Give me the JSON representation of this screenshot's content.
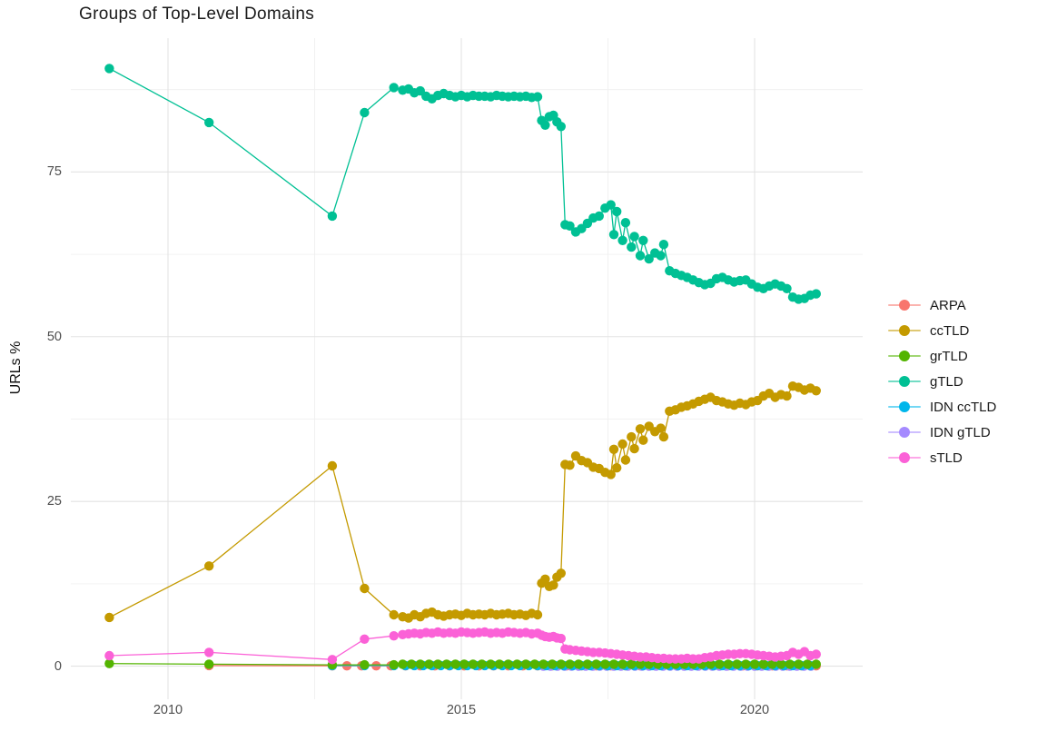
{
  "title": "Groups of Top-Level Domains",
  "chart_data": {
    "type": "line",
    "title": "Groups of Top-Level Domains",
    "xlabel": "",
    "ylabel": "URLs %",
    "x_ticks": [
      2010,
      2015,
      2020
    ],
    "x_tick_labels": [
      "2010",
      "2015",
      "2020"
    ],
    "y_ticks": [
      0,
      25,
      50,
      75
    ],
    "y_tick_labels": [
      "0",
      "25",
      "50",
      "75"
    ],
    "x_minor_ticks": [
      2012.5,
      2017.5
    ],
    "y_minor_ticks": [
      12.5,
      37.5,
      62.5,
      87.5
    ],
    "xlim": [
      2008.4,
      2021.8
    ],
    "ylim": [
      -4.6,
      95.3
    ],
    "grid": true,
    "legend_position": "right",
    "marker": "point-with-line",
    "draw_order": [
      "ARPA",
      "IDN gTLD",
      "IDN ccTLD",
      "ccTLD",
      "grTLD",
      "gTLD",
      "sTLD"
    ],
    "series": [
      {
        "name": "ARPA",
        "color": "#F8766D",
        "points": [
          [
            2010.7,
            0.1
          ]
        ],
        "dense": {
          "from": 2012.8,
          "to": 2021.05,
          "step": 0.25,
          "value": 0.05
        }
      },
      {
        "name": "ccTLD",
        "color": "#C49A00",
        "points": [
          [
            2009,
            7.4
          ],
          [
            2010.7,
            15.2
          ],
          [
            2012.8,
            30.4
          ],
          [
            2013.35,
            11.8
          ],
          [
            2013.85,
            7.8
          ],
          [
            2014,
            7.5
          ],
          [
            2014.1,
            7.3
          ],
          [
            2014.2,
            7.8
          ],
          [
            2014.3,
            7.5
          ],
          [
            2014.4,
            8
          ],
          [
            2014.5,
            8.2
          ],
          [
            2014.6,
            7.8
          ],
          [
            2014.7,
            7.6
          ],
          [
            2014.8,
            7.8
          ],
          [
            2014.9,
            7.9
          ],
          [
            2015,
            7.7
          ],
          [
            2015.1,
            8
          ],
          [
            2015.2,
            7.8
          ],
          [
            2015.3,
            7.9
          ],
          [
            2015.4,
            7.8
          ],
          [
            2015.5,
            8
          ],
          [
            2015.6,
            7.8
          ],
          [
            2015.7,
            7.9
          ],
          [
            2015.8,
            8
          ],
          [
            2015.9,
            7.8
          ],
          [
            2016,
            7.9
          ],
          [
            2016.1,
            7.7
          ],
          [
            2016.2,
            8
          ],
          [
            2016.3,
            7.8
          ],
          [
            2016.37,
            12.6
          ],
          [
            2016.43,
            13.2
          ],
          [
            2016.5,
            12.1
          ],
          [
            2016.57,
            12.3
          ],
          [
            2016.63,
            13.5
          ],
          [
            2016.7,
            14.1
          ],
          [
            2016.77,
            30.6
          ],
          [
            2016.85,
            30.5
          ],
          [
            2016.95,
            31.9
          ],
          [
            2017.05,
            31.2
          ],
          [
            2017.15,
            30.9
          ],
          [
            2017.25,
            30.2
          ],
          [
            2017.35,
            30
          ],
          [
            2017.45,
            29.4
          ],
          [
            2017.55,
            29.1
          ],
          [
            2017.6,
            32.9
          ],
          [
            2017.65,
            30.1
          ],
          [
            2017.75,
            33.7
          ],
          [
            2017.8,
            31.3
          ],
          [
            2017.9,
            34.8
          ],
          [
            2017.95,
            33
          ],
          [
            2018.05,
            36
          ],
          [
            2018.1,
            34.3
          ],
          [
            2018.2,
            36.4
          ],
          [
            2018.3,
            35.6
          ],
          [
            2018.4,
            36.1
          ],
          [
            2018.45,
            34.8
          ],
          [
            2018.55,
            38.7
          ],
          [
            2018.65,
            38.9
          ],
          [
            2018.75,
            39.3
          ],
          [
            2018.85,
            39.5
          ],
          [
            2018.95,
            39.8
          ],
          [
            2019.05,
            40.2
          ],
          [
            2019.15,
            40.5
          ],
          [
            2019.25,
            40.8
          ],
          [
            2019.35,
            40.3
          ],
          [
            2019.45,
            40.1
          ],
          [
            2019.55,
            39.8
          ],
          [
            2019.65,
            39.6
          ],
          [
            2019.75,
            39.9
          ],
          [
            2019.85,
            39.7
          ],
          [
            2019.95,
            40.1
          ],
          [
            2020.05,
            40.3
          ],
          [
            2020.15,
            41
          ],
          [
            2020.25,
            41.4
          ],
          [
            2020.35,
            40.8
          ],
          [
            2020.45,
            41.2
          ],
          [
            2020.55,
            41
          ],
          [
            2020.65,
            42.5
          ],
          [
            2020.75,
            42.3
          ],
          [
            2020.85,
            41.9
          ],
          [
            2020.95,
            42.2
          ],
          [
            2021.05,
            41.8
          ]
        ]
      },
      {
        "name": "grTLD",
        "color": "#53B400",
        "points": [
          [
            2009,
            0.4
          ],
          [
            2010.7,
            0.3
          ],
          [
            2012.8,
            0.2
          ],
          [
            2013.35,
            0.2
          ],
          [
            2013.85,
            0.2
          ]
        ],
        "dense": {
          "from": 2014,
          "to": 2021.05,
          "step": 0.15,
          "value": 0.3
        }
      },
      {
        "name": "gTLD",
        "color": "#00C094",
        "points": [
          [
            2009,
            90.7
          ],
          [
            2010.7,
            82.5
          ],
          [
            2012.8,
            68.3
          ],
          [
            2013.35,
            84
          ],
          [
            2013.85,
            87.8
          ],
          [
            2014,
            87.4
          ],
          [
            2014.1,
            87.6
          ],
          [
            2014.2,
            87
          ],
          [
            2014.3,
            87.3
          ],
          [
            2014.4,
            86.5
          ],
          [
            2014.5,
            86.1
          ],
          [
            2014.6,
            86.6
          ],
          [
            2014.7,
            86.9
          ],
          [
            2014.8,
            86.6
          ],
          [
            2014.9,
            86.4
          ],
          [
            2015,
            86.6
          ],
          [
            2015.1,
            86.4
          ],
          [
            2015.2,
            86.6
          ],
          [
            2015.3,
            86.5
          ],
          [
            2015.4,
            86.5
          ],
          [
            2015.5,
            86.4
          ],
          [
            2015.6,
            86.6
          ],
          [
            2015.7,
            86.5
          ],
          [
            2015.8,
            86.4
          ],
          [
            2015.9,
            86.5
          ],
          [
            2016,
            86.4
          ],
          [
            2016.1,
            86.5
          ],
          [
            2016.2,
            86.3
          ],
          [
            2016.3,
            86.4
          ],
          [
            2016.37,
            82.8
          ],
          [
            2016.43,
            82.1
          ],
          [
            2016.5,
            83.4
          ],
          [
            2016.57,
            83.6
          ],
          [
            2016.63,
            82.6
          ],
          [
            2016.7,
            81.9
          ],
          [
            2016.77,
            67
          ],
          [
            2016.85,
            66.8
          ],
          [
            2016.95,
            65.9
          ],
          [
            2017.05,
            66.4
          ],
          [
            2017.15,
            67.2
          ],
          [
            2017.25,
            68
          ],
          [
            2017.35,
            68.3
          ],
          [
            2017.45,
            69.5
          ],
          [
            2017.55,
            70
          ],
          [
            2017.6,
            65.5
          ],
          [
            2017.65,
            69
          ],
          [
            2017.75,
            64.6
          ],
          [
            2017.8,
            67.3
          ],
          [
            2017.9,
            63.6
          ],
          [
            2017.95,
            65.2
          ],
          [
            2018.05,
            62.3
          ],
          [
            2018.1,
            64.6
          ],
          [
            2018.2,
            61.8
          ],
          [
            2018.3,
            62.7
          ],
          [
            2018.4,
            62.3
          ],
          [
            2018.45,
            64
          ],
          [
            2018.55,
            60
          ],
          [
            2018.65,
            59.6
          ],
          [
            2018.75,
            59.3
          ],
          [
            2018.85,
            59
          ],
          [
            2018.95,
            58.6
          ],
          [
            2019.05,
            58.2
          ],
          [
            2019.15,
            57.9
          ],
          [
            2019.25,
            58.1
          ],
          [
            2019.35,
            58.8
          ],
          [
            2019.45,
            59
          ],
          [
            2019.55,
            58.6
          ],
          [
            2019.65,
            58.3
          ],
          [
            2019.75,
            58.5
          ],
          [
            2019.85,
            58.6
          ],
          [
            2019.95,
            58
          ],
          [
            2020.05,
            57.5
          ],
          [
            2020.15,
            57.3
          ],
          [
            2020.25,
            57.7
          ],
          [
            2020.35,
            58
          ],
          [
            2020.45,
            57.7
          ],
          [
            2020.55,
            57.3
          ],
          [
            2020.65,
            56
          ],
          [
            2020.75,
            55.7
          ],
          [
            2020.85,
            55.8
          ],
          [
            2020.95,
            56.3
          ],
          [
            2021.05,
            56.5
          ]
        ]
      },
      {
        "name": "IDN ccTLD",
        "color": "#00B6EB",
        "points": [
          [
            2012.8,
            0.1
          ],
          [
            2013.35,
            0.1
          ],
          [
            2013.85,
            0.1
          ]
        ],
        "dense": {
          "from": 2014.05,
          "to": 2021.05,
          "step": 0.15,
          "value": 0.1
        }
      },
      {
        "name": "IDN gTLD",
        "color": "#A58AFF",
        "points": [],
        "dense": {
          "from": 2016.4,
          "to": 2021.05,
          "step": 0.12,
          "value": 0
        }
      },
      {
        "name": "sTLD",
        "color": "#FB61D7",
        "points": [
          [
            2009,
            1.6
          ],
          [
            2010.7,
            2.1
          ],
          [
            2012.8,
            1
          ],
          [
            2013.35,
            4.1
          ],
          [
            2013.85,
            4.6
          ],
          [
            2014,
            4.8
          ],
          [
            2014.1,
            4.9
          ],
          [
            2014.2,
            5
          ],
          [
            2014.3,
            4.9
          ],
          [
            2014.4,
            5.1
          ],
          [
            2014.5,
            5
          ],
          [
            2014.6,
            5.2
          ],
          [
            2014.7,
            5
          ],
          [
            2014.8,
            5.1
          ],
          [
            2014.9,
            5
          ],
          [
            2015,
            5.2
          ],
          [
            2015.1,
            5.1
          ],
          [
            2015.2,
            5
          ],
          [
            2015.3,
            5.1
          ],
          [
            2015.4,
            5.2
          ],
          [
            2015.5,
            5
          ],
          [
            2015.6,
            5.1
          ],
          [
            2015.7,
            5
          ],
          [
            2015.8,
            5.2
          ],
          [
            2015.9,
            5.1
          ],
          [
            2016,
            5
          ],
          [
            2016.1,
            5.1
          ],
          [
            2016.2,
            4.9
          ],
          [
            2016.3,
            5
          ],
          [
            2016.37,
            4.7
          ],
          [
            2016.43,
            4.5
          ],
          [
            2016.5,
            4.4
          ],
          [
            2016.57,
            4.5
          ],
          [
            2016.63,
            4.3
          ],
          [
            2016.7,
            4.2
          ],
          [
            2016.77,
            2.6
          ],
          [
            2016.85,
            2.5
          ],
          [
            2016.95,
            2.4
          ],
          [
            2017.05,
            2.3
          ],
          [
            2017.15,
            2.2
          ],
          [
            2017.25,
            2.1
          ],
          [
            2017.35,
            2.1
          ],
          [
            2017.45,
            2
          ],
          [
            2017.55,
            1.9
          ],
          [
            2017.65,
            1.8
          ],
          [
            2017.75,
            1.7
          ],
          [
            2017.85,
            1.6
          ],
          [
            2017.95,
            1.5
          ],
          [
            2018.05,
            1.4
          ],
          [
            2018.15,
            1.4
          ],
          [
            2018.25,
            1.3
          ],
          [
            2018.35,
            1.2
          ],
          [
            2018.45,
            1.2
          ],
          [
            2018.55,
            1.1
          ],
          [
            2018.65,
            1.1
          ],
          [
            2018.75,
            1.1
          ],
          [
            2018.85,
            1.2
          ],
          [
            2018.95,
            1.1
          ],
          [
            2019.05,
            1.1
          ],
          [
            2019.15,
            1.3
          ],
          [
            2019.25,
            1.4
          ],
          [
            2019.35,
            1.6
          ],
          [
            2019.45,
            1.7
          ],
          [
            2019.55,
            1.8
          ],
          [
            2019.65,
            1.8
          ],
          [
            2019.75,
            1.9
          ],
          [
            2019.85,
            1.9
          ],
          [
            2019.95,
            1.8
          ],
          [
            2020.05,
            1.7
          ],
          [
            2020.15,
            1.6
          ],
          [
            2020.25,
            1.5
          ],
          [
            2020.35,
            1.4
          ],
          [
            2020.45,
            1.5
          ],
          [
            2020.55,
            1.6
          ],
          [
            2020.65,
            2.1
          ],
          [
            2020.75,
            1.8
          ],
          [
            2020.85,
            2.2
          ],
          [
            2020.95,
            1.6
          ],
          [
            2021.05,
            1.8
          ]
        ]
      }
    ],
    "style": {
      "background": "#ffffff",
      "grid_major_color": "#e3e3e3",
      "grid_minor_color": "#f0f0f0",
      "tick_label_color": "#4d4d4d",
      "title_color": "#1a1a1a",
      "point_radius": 5.2,
      "line_width": 1.3
    }
  }
}
